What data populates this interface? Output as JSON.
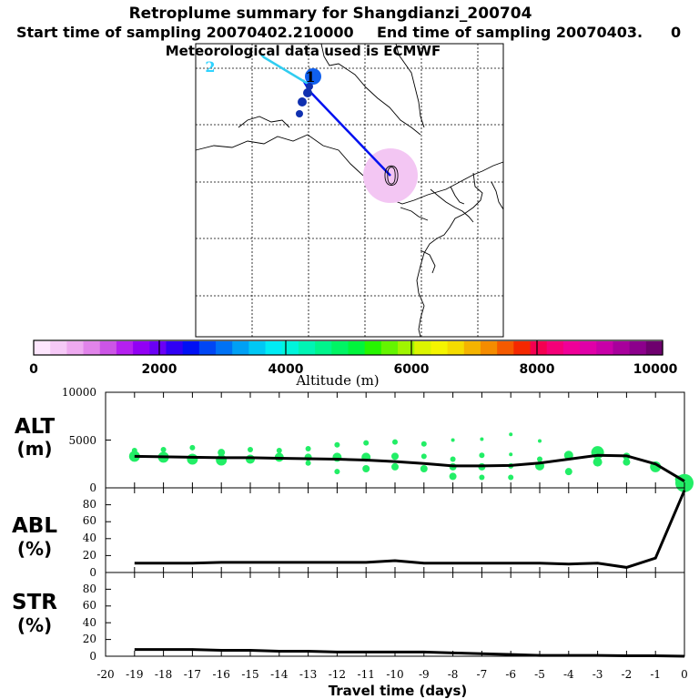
{
  "header": {
    "title": "Retroplume summary for Shangdianzi_200704",
    "start_label": "Start time of sampling 20070402.210000",
    "end_label": "End time of sampling 20070403.",
    "end_suffix": "0",
    "meteo_label": "Meteorological data used is ECMWF"
  },
  "map": {
    "labels": [
      "0",
      "1",
      "2"
    ],
    "label_colors": [
      "#000000",
      "#000000",
      "#2fd3ff"
    ]
  },
  "colorbar": {
    "title": "Altitude (m)",
    "ticks": [
      "0",
      "2000",
      "4000",
      "6000",
      "8000",
      "10000"
    ],
    "colors": [
      "#fde6fd",
      "#f6c9f7",
      "#eeaaf0",
      "#e184ea",
      "#cc55e6",
      "#b520f0",
      "#9200f4",
      "#6a00f5",
      "#3000f5",
      "#0010f5",
      "#0046f5",
      "#0072f5",
      "#00a0f5",
      "#00c8f5",
      "#00ecf5",
      "#00f5dc",
      "#00f5b4",
      "#00f58c",
      "#00f564",
      "#00f53c",
      "#26f500",
      "#64f500",
      "#a0f500",
      "#dcf500",
      "#f5f500",
      "#f5dc00",
      "#f5b400",
      "#f58c00",
      "#f55a00",
      "#f52800",
      "#f50050",
      "#f50078",
      "#f00098",
      "#e000a8",
      "#c800a8",
      "#a8009c",
      "#8c008c",
      "#6e006e"
    ]
  },
  "chart_data": [
    {
      "type": "line",
      "id": "alt",
      "ylabel": "ALT\n(m)",
      "ylabel_lines": [
        "ALT",
        "(m)"
      ],
      "ylim": [
        0,
        10000
      ],
      "y_ticks": [
        "10000",
        "5000",
        "0"
      ],
      "x": [
        -19,
        -18,
        -17,
        -16,
        -15,
        -14,
        -13,
        -12,
        -11,
        -10,
        -9,
        -8,
        -7,
        -6,
        -5,
        -4,
        -3,
        -2,
        -1,
        0
      ],
      "values": [
        3300,
        3250,
        3200,
        3150,
        3150,
        3100,
        3050,
        3000,
        2900,
        2750,
        2550,
        2300,
        2300,
        2350,
        2600,
        3000,
        3400,
        3350,
        2500,
        700
      ],
      "scatter": [
        {
          "x": -19,
          "y": 3300,
          "r": 6
        },
        {
          "x": -19,
          "y": 3900,
          "r": 3
        },
        {
          "x": -18,
          "y": 3200,
          "r": 6
        },
        {
          "x": -18,
          "y": 4000,
          "r": 3
        },
        {
          "x": -17,
          "y": 3000,
          "r": 6
        },
        {
          "x": -17,
          "y": 4200,
          "r": 3
        },
        {
          "x": -16,
          "y": 2900,
          "r": 6
        },
        {
          "x": -16,
          "y": 3700,
          "r": 4
        },
        {
          "x": -15,
          "y": 3000,
          "r": 5
        },
        {
          "x": -15,
          "y": 4000,
          "r": 3
        },
        {
          "x": -14,
          "y": 3200,
          "r": 5
        },
        {
          "x": -14,
          "y": 3900,
          "r": 3
        },
        {
          "x": -13,
          "y": 2600,
          "r": 3
        },
        {
          "x": -13,
          "y": 3200,
          "r": 4
        },
        {
          "x": -13,
          "y": 4100,
          "r": 3
        },
        {
          "x": -12,
          "y": 1700,
          "r": 3
        },
        {
          "x": -12,
          "y": 3200,
          "r": 5
        },
        {
          "x": -12,
          "y": 4500,
          "r": 3
        },
        {
          "x": -11,
          "y": 2000,
          "r": 4
        },
        {
          "x": -11,
          "y": 3200,
          "r": 5
        },
        {
          "x": -11,
          "y": 4700,
          "r": 3
        },
        {
          "x": -10,
          "y": 2200,
          "r": 4
        },
        {
          "x": -10,
          "y": 3300,
          "r": 4
        },
        {
          "x": -10,
          "y": 4800,
          "r": 3
        },
        {
          "x": -9,
          "y": 2000,
          "r": 4
        },
        {
          "x": -9,
          "y": 3300,
          "r": 3
        },
        {
          "x": -9,
          "y": 4600,
          "r": 3
        },
        {
          "x": -8,
          "y": 1200,
          "r": 4
        },
        {
          "x": -8,
          "y": 2200,
          "r": 4
        },
        {
          "x": -8,
          "y": 3000,
          "r": 3
        },
        {
          "x": -8,
          "y": 5000,
          "r": 2
        },
        {
          "x": -7,
          "y": 1100,
          "r": 3
        },
        {
          "x": -7,
          "y": 2200,
          "r": 4
        },
        {
          "x": -7,
          "y": 3400,
          "r": 3
        },
        {
          "x": -7,
          "y": 5100,
          "r": 2
        },
        {
          "x": -6,
          "y": 1100,
          "r": 3
        },
        {
          "x": -6,
          "y": 2300,
          "r": 3
        },
        {
          "x": -6,
          "y": 3500,
          "r": 2
        },
        {
          "x": -6,
          "y": 5600,
          "r": 2
        },
        {
          "x": -5,
          "y": 2300,
          "r": 5
        },
        {
          "x": -5,
          "y": 3000,
          "r": 3
        },
        {
          "x": -5,
          "y": 4900,
          "r": 2
        },
        {
          "x": -4,
          "y": 1700,
          "r": 4
        },
        {
          "x": -4,
          "y": 3400,
          "r": 5
        },
        {
          "x": -3,
          "y": 2700,
          "r": 5
        },
        {
          "x": -3,
          "y": 3700,
          "r": 7
        },
        {
          "x": -2,
          "y": 2700,
          "r": 4
        },
        {
          "x": -2,
          "y": 3300,
          "r": 4
        },
        {
          "x": -1,
          "y": 2200,
          "r": 6
        },
        {
          "x": 0,
          "y": 500,
          "r": 10
        },
        {
          "x": -0.2,
          "y": 900,
          "r": 4
        }
      ]
    },
    {
      "type": "line",
      "id": "abl",
      "ylabel_lines": [
        "ABL",
        "(%)"
      ],
      "ylim": [
        0,
        100
      ],
      "y_ticks": [
        "80",
        "60",
        "40",
        "20",
        "0"
      ],
      "x": [
        -19,
        -18,
        -17,
        -16,
        -15,
        -14,
        -13,
        -12,
        -11,
        -10,
        -9,
        -8,
        -7,
        -6,
        -5,
        -4,
        -3,
        -2,
        -1,
        0
      ],
      "values": [
        11,
        11,
        11,
        12,
        12,
        12,
        12,
        12,
        12,
        14,
        11,
        11,
        11,
        11,
        11,
        10,
        11,
        6,
        17,
        97
      ]
    },
    {
      "type": "line",
      "id": "str",
      "ylabel_lines": [
        "STR",
        "(%)"
      ],
      "ylim": [
        0,
        100
      ],
      "y_ticks": [
        "80",
        "60",
        "40",
        "20",
        "0"
      ],
      "x": [
        -19,
        -18,
        -17,
        -16,
        -15,
        -14,
        -13,
        -12,
        -11,
        -10,
        -9,
        -8,
        -7,
        -6,
        -5,
        -4,
        -3,
        -2,
        -1,
        0
      ],
      "values": [
        8,
        8,
        8,
        7,
        7,
        6,
        6,
        5,
        5,
        5,
        5,
        4,
        3,
        2,
        1,
        1,
        1,
        0.5,
        0.5,
        0
      ]
    },
    {
      "type": "axis",
      "id": "travel-time",
      "xlabel": "Travel time (days)",
      "xlim": [
        -20,
        0
      ],
      "x_ticks": [
        "-20",
        "-19",
        "-18",
        "-17",
        "-16",
        "-15",
        "-14",
        "-13",
        "-12",
        "-11",
        "-10",
        "-9",
        "-8",
        "-7",
        "-6",
        "-5",
        "-4",
        "-3",
        "-2",
        "-1",
        "0"
      ]
    }
  ]
}
